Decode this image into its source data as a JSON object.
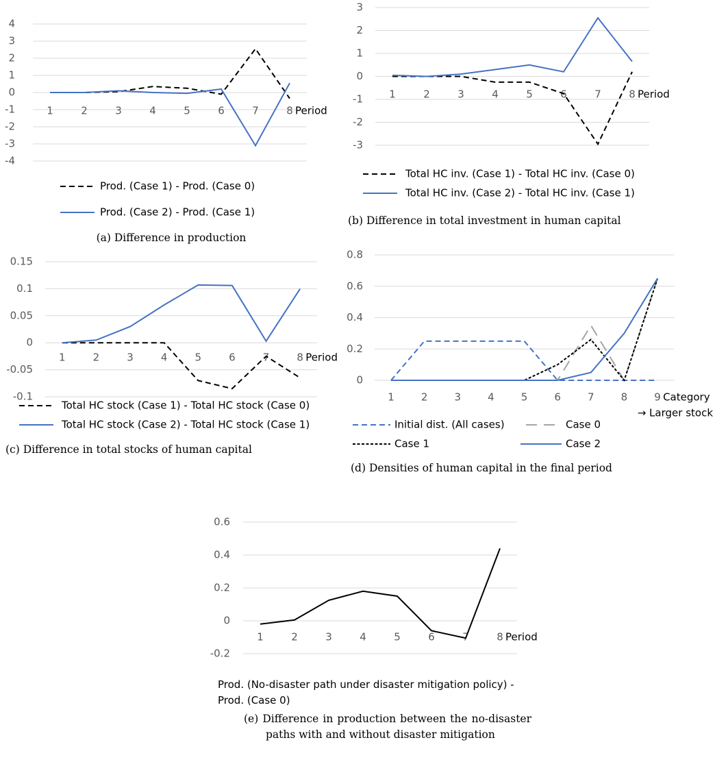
{
  "chart_data": [
    {
      "type": "line",
      "caption": "(a) Difference in production",
      "x_label": "Period",
      "categories": [
        "1",
        "2",
        "3",
        "4",
        "5",
        "6",
        "7",
        "8"
      ],
      "ylim": [
        -4,
        4
      ],
      "yticks": [
        -4,
        -3,
        -2,
        -1,
        0,
        1,
        2,
        3,
        4
      ],
      "grid": true,
      "series": [
        {
          "name": "Prod. (Case 1) - Prod. (Case 0)",
          "color": "#000000",
          "linestyle": "dashed",
          "values": [
            0,
            0,
            0.05,
            0.35,
            0.25,
            -0.1,
            2.55,
            -0.35
          ]
        },
        {
          "name": "Prod. (Case 2) - Prod. (Case 1)",
          "color": "#4472c4",
          "linestyle": "solid",
          "values": [
            0,
            0,
            0.1,
            0,
            -0.05,
            0.2,
            -3.1,
            0.55
          ]
        }
      ]
    },
    {
      "type": "line",
      "caption": "(b) Difference in total investment in human capital",
      "x_label": "Period",
      "categories": [
        "1",
        "2",
        "3",
        "4",
        "5",
        "6",
        "7",
        "8"
      ],
      "ylim": [
        -3,
        3
      ],
      "yticks": [
        -3,
        -2,
        -1,
        0,
        1,
        2,
        3
      ],
      "grid": true,
      "series": [
        {
          "name": "Total HC inv. (Case 1) - Total HC inv. (Case 0)",
          "color": "#000000",
          "linestyle": "dashed",
          "values": [
            0,
            0,
            0,
            -0.25,
            -0.25,
            -0.75,
            -2.95,
            0.2
          ]
        },
        {
          "name": "Total HC inv. (Case 2) - Total HC inv. (Case 1)",
          "color": "#4472c4",
          "linestyle": "solid",
          "values": [
            0.05,
            0,
            0.1,
            0.3,
            0.5,
            0.2,
            2.55,
            0.65
          ]
        }
      ]
    },
    {
      "type": "line",
      "caption": "(c) Difference in total stocks of human capital",
      "x_label": "Period",
      "categories": [
        "1",
        "2",
        "3",
        "4",
        "5",
        "6",
        "7",
        "8"
      ],
      "ylim": [
        -0.1,
        0.15
      ],
      "yticks": [
        -0.1,
        -0.05,
        0,
        0.05,
        0.1,
        0.15
      ],
      "grid": true,
      "series": [
        {
          "name": "Total HC stock (Case 1) - Total HC stock (Case 0)",
          "color": "#000000",
          "linestyle": "dashed",
          "values": [
            0,
            0,
            0,
            0,
            -0.07,
            -0.085,
            -0.025,
            -0.065
          ]
        },
        {
          "name": "Total HC stock (Case 2) - Total HC stock (Case 1)",
          "color": "#4472c4",
          "linestyle": "solid",
          "values": [
            0,
            0.005,
            0.03,
            0.07,
            0.107,
            0.106,
            0.003,
            0.1
          ]
        }
      ]
    },
    {
      "type": "line",
      "caption": "(d) Densities of human capital in the final period",
      "x_label": "Category",
      "annotation": "→ Larger stock",
      "categories": [
        "1",
        "2",
        "3",
        "4",
        "5",
        "6",
        "7",
        "8",
        "9"
      ],
      "ylim": [
        0,
        0.8
      ],
      "yticks": [
        0,
        0.2,
        0.4,
        0.6,
        0.8
      ],
      "grid": true,
      "series": [
        {
          "name": "Initial dist. (All cases)",
          "color": "#4472c4",
          "linestyle": "dashed",
          "values": [
            0,
            0.25,
            0.25,
            0.25,
            0.25,
            0,
            0,
            0,
            0
          ]
        },
        {
          "name": "Case 0",
          "color": "#a5a5a5",
          "linestyle": "long-dashed",
          "values": [
            0,
            0,
            0,
            0,
            0,
            0,
            0.35,
            0,
            0.65
          ]
        },
        {
          "name": "Case 1",
          "color": "#000000",
          "linestyle": "dotted",
          "values": [
            0,
            0,
            0,
            0,
            0,
            0.1,
            0.26,
            0,
            0.65
          ]
        },
        {
          "name": "Case 2",
          "color": "#4472c4",
          "linestyle": "solid",
          "values": [
            0,
            0,
            0,
            0,
            0,
            0,
            0.05,
            0.3,
            0.65
          ]
        }
      ]
    },
    {
      "type": "line",
      "caption": "(e) Difference in production between the no-disaster paths with and without disaster mitigation",
      "x_label": "Period",
      "categories": [
        "1",
        "2",
        "3",
        "4",
        "5",
        "6",
        "7",
        "8"
      ],
      "ylim": [
        -0.2,
        0.6
      ],
      "yticks": [
        -0.2,
        0,
        0.2,
        0.4,
        0.6
      ],
      "grid": true,
      "series": [
        {
          "name": "Prod. (No-disaster path under disaster mitigation policy) - Prod. (Case 0)",
          "color": "#000000",
          "linestyle": "solid",
          "values": [
            -0.02,
            0.005,
            0.125,
            0.18,
            0.15,
            -0.06,
            -0.105,
            0.44
          ]
        }
      ]
    }
  ]
}
